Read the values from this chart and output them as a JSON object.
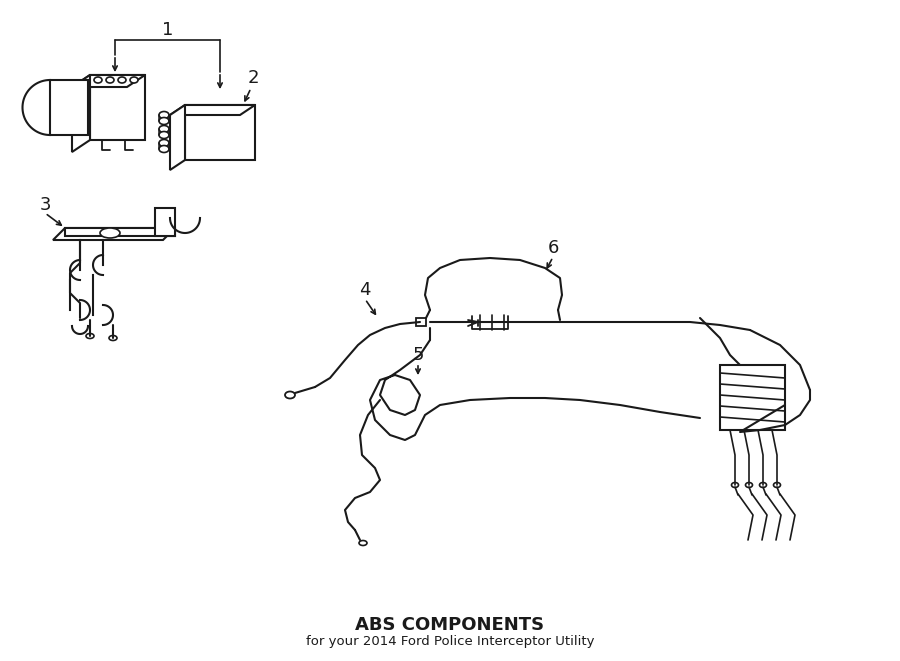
{
  "title": "ABS COMPONENTS",
  "subtitle": "for your 2014 Ford Police Interceptor Utility",
  "background_color": "#ffffff",
  "line_color": "#1a1a1a",
  "text_color": "#1a1a1a",
  "figsize": [
    9.0,
    6.61
  ],
  "dpi": 100
}
